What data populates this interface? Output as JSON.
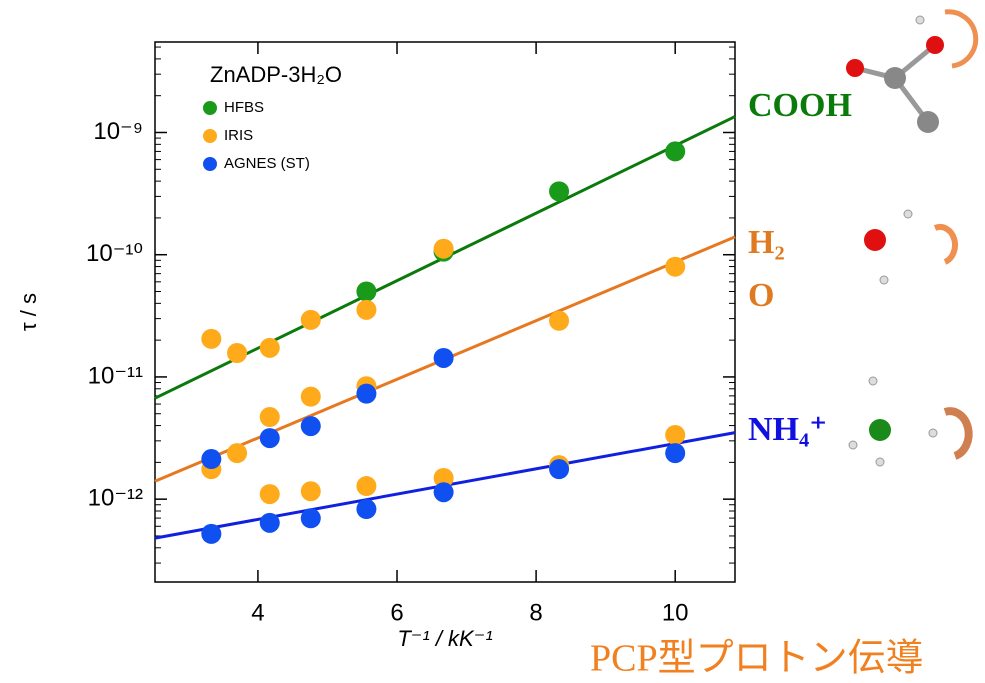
{
  "chart_data": {
    "type": "scatter",
    "y_label": "τ / s",
    "x_label": "T⁻¹ / kK⁻¹",
    "legend_title": "ZnADP-3H₂O",
    "legend": "upper-left",
    "log_y": true,
    "xlim": [
      2.52,
      10.86
    ],
    "ylim": [
      2.1e-13,
      5.5e-09
    ],
    "xticks": [
      4,
      6,
      8,
      10
    ],
    "yticks": [
      {
        "value": 1e-12,
        "label": "10⁻¹²"
      },
      {
        "value": 1e-11,
        "label": "10⁻¹¹"
      },
      {
        "value": 1e-10,
        "label": "10⁻¹⁰"
      },
      {
        "value": 1e-09,
        "label": "10⁻⁹"
      }
    ],
    "series": [
      {
        "name": "HFBS",
        "color": "#1a9a1a",
        "x": [
          5.56,
          6.67,
          8.33,
          10
        ],
        "values": [
          5e-11,
          1.06e-10,
          3.3e-10,
          7e-10
        ]
      },
      {
        "name": "IRIS",
        "color": "#ffaa1a",
        "x": [
          3.33,
          3.33,
          3.7,
          3.7,
          4.17,
          4.17,
          4.17,
          4.76,
          4.76,
          4.76,
          5.56,
          5.56,
          5.56,
          6.67,
          6.67,
          8.33,
          8.33,
          10,
          10
        ],
        "values": [
          2.05e-11,
          1.76e-12,
          1.57e-11,
          2.38e-12,
          1.73e-11,
          4.7e-12,
          1.1e-12,
          2.93e-11,
          6.9e-12,
          1.16e-12,
          3.54e-11,
          8.4e-12,
          1.28e-12,
          1.12e-10,
          1.49e-12,
          2.88e-11,
          1.9e-12,
          7.98e-11,
          3.35e-12
        ]
      },
      {
        "name": "AGNES (ST)",
        "color": "#1050f0",
        "x": [
          3.33,
          3.33,
          4.17,
          4.17,
          4.76,
          4.76,
          5.56,
          5.56,
          6.67,
          6.67,
          8.33,
          10
        ],
        "values": [
          5.2e-13,
          2.13e-12,
          6.4e-13,
          3.16e-12,
          6.98e-13,
          3.96e-12,
          8.3e-13,
          7.3e-12,
          1.14e-12,
          1.43e-11,
          1.76e-12,
          2.38e-12
        ]
      }
    ],
    "fits": [
      {
        "color": "#0a7a0a",
        "x": [
          2.52,
          10.86
        ],
        "values": [
          6.7e-12,
          1.35e-09
        ]
      },
      {
        "color": "#e87820",
        "x": [
          2.52,
          10.86
        ],
        "values": [
          1.4e-12,
          1.4e-10
        ]
      },
      {
        "color": "#1020e0",
        "x": [
          2.52,
          10.86
        ],
        "values": [
          4.8e-13,
          3.5e-12
        ]
      }
    ],
    "annotations": [
      {
        "text": "COOH",
        "color": "#0a7a0a"
      },
      {
        "text": "H₂",
        "color": "#e07a20"
      },
      {
        "text": "O",
        "color": "#e07a20"
      },
      {
        "text": "NH₄⁺",
        "color": "#1010e0"
      },
      {
        "text": "PCP型プロトン伝導",
        "color": "#f08020"
      }
    ]
  }
}
